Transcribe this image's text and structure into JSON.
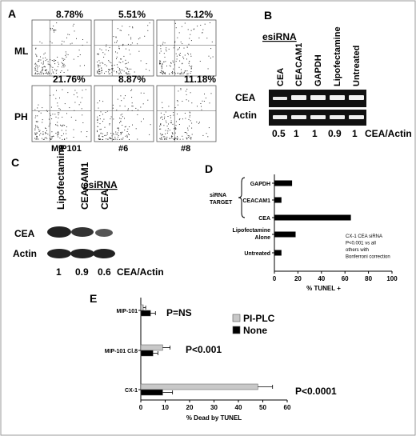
{
  "figure": {
    "panel_letters": {
      "A": "A",
      "B": "B",
      "C": "C",
      "D": "D",
      "E": "E"
    },
    "panel_a": {
      "row_labels": [
        "ML",
        "PH"
      ],
      "col_labels": [
        "MIP101",
        "#6",
        "#8"
      ],
      "percentages": [
        [
          "8.78%",
          "5.51%",
          "5.12%"
        ],
        [
          "21.76%",
          "8.87%",
          "11.18%"
        ]
      ]
    },
    "panel_b": {
      "title": "esiRNA",
      "lanes": [
        "CEA",
        "CEACAM1",
        "GAPDH",
        "Lipofectamine",
        "Untreated"
      ],
      "rows": [
        "CEA",
        "Actin"
      ],
      "ratios": [
        "0.5",
        "1",
        "1",
        "0.9",
        "1"
      ],
      "ratio_label": "CEA/Actin"
    },
    "panel_c": {
      "title": "esiRNA",
      "lanes": [
        "Lipofectamine",
        "CEACAM1",
        "CEA"
      ],
      "rows": [
        "CEA",
        "Actin"
      ],
      "ratios": [
        "1",
        "0.9",
        "0.6"
      ],
      "ratio_label": "CEA/Actin"
    },
    "panel_e_annotations": [
      "P=NS",
      "P<0.001",
      "P<0.0001"
    ]
  },
  "chart_data": [
    {
      "id": "D",
      "type": "bar",
      "orientation": "horizontal",
      "categories": [
        "GAPDH",
        "CEACAM1",
        "CEA",
        "Lipofectamine Alone",
        "Untreated"
      ],
      "group_label": "siRNA TARGET",
      "values": [
        15,
        6,
        65,
        18,
        6
      ],
      "xlabel": "% TUNEL +",
      "xlim": [
        0,
        100
      ],
      "xticks": [
        "0",
        "20",
        "40",
        "60",
        "80",
        "100"
      ],
      "annotation": [
        "CX-1 CEA siRNA",
        "P<0.001 vs all",
        "others with",
        "Bonferroni correction"
      ],
      "bar_color": "#000000"
    },
    {
      "id": "E",
      "type": "bar",
      "orientation": "horizontal",
      "categories": [
        "MIP-101",
        "MIP-101 Cl.8",
        "CX-1"
      ],
      "series": [
        {
          "name": "PI-PLC",
          "values": [
            1,
            9,
            48
          ],
          "errors": [
            1,
            3,
            6
          ]
        },
        {
          "name": "None",
          "values": [
            4,
            5,
            9
          ],
          "errors": [
            2,
            2,
            4
          ]
        }
      ],
      "xlabel": "% Dead by TUNEL",
      "xlim": [
        0,
        60
      ],
      "xticks": [
        "0",
        "10",
        "20",
        "30",
        "40",
        "50",
        "60"
      ],
      "legend_position": "top-right",
      "colors": {
        "PI-PLC": "#c8c8c8",
        "None": "#000000"
      }
    }
  ]
}
